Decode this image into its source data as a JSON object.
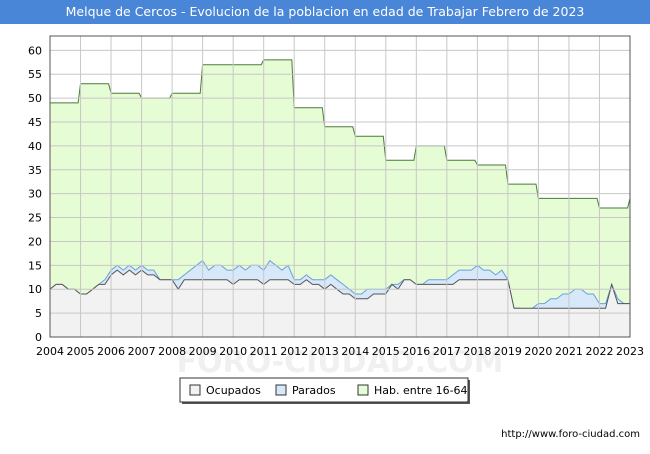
{
  "title": "Melque de Cercos - Evolucion de la poblacion en edad de Trabajar Febrero de 2023",
  "url": "http://www.foro-ciudad.com",
  "watermark": "FORO-CIUDAD.COM",
  "colors": {
    "title_bg": "#4a86d8",
    "hab_fill": "#e6fcd4",
    "hab_line": "#4a7a3a",
    "parados_fill": "#d6e8fa",
    "parados_line": "#6aa0d8",
    "ocupados_fill": "#f2f2f2",
    "ocupados_line": "#555555"
  },
  "chart_data": {
    "type": "area",
    "title": "Melque de Cercos - Evolucion de la poblacion en edad de Trabajar Febrero de 2023",
    "xlim": [
      2004,
      2023
    ],
    "ylim": [
      0,
      63
    ],
    "x_ticks": [
      "2004",
      "2005",
      "2006",
      "2007",
      "2008",
      "2009",
      "2010",
      "2011",
      "2012",
      "2013",
      "2014",
      "2015",
      "2016",
      "2017",
      "2018",
      "2019",
      "2020",
      "2021",
      "2022",
      "2023"
    ],
    "y_ticks": [
      0,
      5,
      10,
      15,
      20,
      25,
      30,
      35,
      40,
      45,
      50,
      55,
      60
    ],
    "grid": true,
    "legend": "bottom",
    "series": [
      {
        "name": "Hab. entre 16-64",
        "x": [
          2004.0,
          2004.92,
          2005.0,
          2005.92,
          2006.0,
          2006.92,
          2007.0,
          2007.92,
          2008.0,
          2008.92,
          2009.0,
          2010.92,
          2011.0,
          2011.92,
          2012.0,
          2012.92,
          2013.0,
          2013.92,
          2014.0,
          2014.92,
          2015.0,
          2015.92,
          2016.0,
          2016.92,
          2017.0,
          2017.92,
          2018.0,
          2018.92,
          2019.0,
          2019.92,
          2020.0,
          2021.92,
          2022.0,
          2022.92,
          2023.0,
          2023.1
        ],
        "values": [
          49,
          49,
          53,
          53,
          51,
          51,
          50,
          50,
          51,
          51,
          57,
          57,
          58,
          58,
          48,
          48,
          44,
          44,
          42,
          42,
          37,
          37,
          40,
          40,
          37,
          37,
          36,
          36,
          32,
          32,
          29,
          29,
          27,
          27,
          29,
          29
        ]
      },
      {
        "name": "Parados",
        "x": [
          2004.0,
          2004.2,
          2004.4,
          2004.6,
          2004.8,
          2005.0,
          2005.2,
          2005.4,
          2005.6,
          2005.8,
          2006.0,
          2006.2,
          2006.4,
          2006.6,
          2006.8,
          2007.0,
          2007.2,
          2007.4,
          2007.6,
          2007.8,
          2008.0,
          2008.2,
          2008.4,
          2008.6,
          2008.8,
          2009.0,
          2009.2,
          2009.4,
          2009.6,
          2009.8,
          2010.0,
          2010.2,
          2010.4,
          2010.6,
          2010.8,
          2011.0,
          2011.2,
          2011.4,
          2011.6,
          2011.8,
          2012.0,
          2012.2,
          2012.4,
          2012.6,
          2012.8,
          2013.0,
          2013.2,
          2013.4,
          2013.6,
          2013.8,
          2014.0,
          2014.2,
          2014.4,
          2014.6,
          2014.8,
          2015.0,
          2015.2,
          2015.4,
          2015.6,
          2015.8,
          2016.0,
          2016.2,
          2016.4,
          2016.6,
          2016.8,
          2017.0,
          2017.2,
          2017.4,
          2017.6,
          2017.8,
          2018.0,
          2018.2,
          2018.4,
          2018.6,
          2018.8,
          2019.0,
          2019.2,
          2019.4,
          2019.6,
          2019.8,
          2020.0,
          2020.2,
          2020.4,
          2020.6,
          2020.8,
          2021.0,
          2021.2,
          2021.4,
          2021.6,
          2021.8,
          2022.0,
          2022.2,
          2022.4,
          2022.6,
          2022.8,
          2023.0,
          2023.1
        ],
        "values": [
          10,
          11,
          11,
          10,
          10,
          9,
          9,
          10,
          11,
          12,
          14,
          15,
          14,
          15,
          14,
          15,
          14,
          14,
          12,
          12,
          12,
          12,
          13,
          14,
          15,
          16,
          14,
          15,
          15,
          14,
          14,
          15,
          14,
          15,
          15,
          14,
          16,
          15,
          14,
          15,
          12,
          12,
          13,
          12,
          12,
          12,
          13,
          12,
          11,
          10,
          9,
          9,
          10,
          10,
          10,
          10,
          11,
          11,
          12,
          12,
          11,
          11,
          12,
          12,
          12,
          12,
          13,
          14,
          14,
          14,
          15,
          14,
          14,
          13,
          14,
          12,
          6,
          6,
          5,
          6,
          7,
          7,
          8,
          8,
          9,
          9,
          10,
          10,
          9,
          9,
          7,
          7,
          11,
          8,
          7,
          7,
          7
        ]
      },
      {
        "name": "Ocupados",
        "x": [
          2004.0,
          2004.2,
          2004.4,
          2004.6,
          2004.8,
          2005.0,
          2005.2,
          2005.4,
          2005.6,
          2005.8,
          2006.0,
          2006.2,
          2006.4,
          2006.6,
          2006.8,
          2007.0,
          2007.2,
          2007.4,
          2007.6,
          2007.8,
          2008.0,
          2008.2,
          2008.4,
          2008.6,
          2008.8,
          2009.0,
          2009.2,
          2009.4,
          2009.6,
          2009.8,
          2010.0,
          2010.2,
          2010.4,
          2010.6,
          2010.8,
          2011.0,
          2011.2,
          2011.4,
          2011.6,
          2011.8,
          2012.0,
          2012.2,
          2012.4,
          2012.6,
          2012.8,
          2013.0,
          2013.2,
          2013.4,
          2013.6,
          2013.8,
          2014.0,
          2014.2,
          2014.4,
          2014.6,
          2014.8,
          2015.0,
          2015.2,
          2015.4,
          2015.6,
          2015.8,
          2016.0,
          2016.2,
          2016.4,
          2016.6,
          2016.8,
          2017.0,
          2017.2,
          2017.4,
          2017.6,
          2017.8,
          2018.0,
          2018.2,
          2018.4,
          2018.6,
          2018.8,
          2019.0,
          2019.2,
          2019.4,
          2019.6,
          2019.8,
          2020.0,
          2020.2,
          2020.4,
          2020.6,
          2020.8,
          2021.0,
          2021.2,
          2021.4,
          2021.6,
          2021.8,
          2022.0,
          2022.2,
          2022.4,
          2022.6,
          2022.8,
          2023.0,
          2023.1
        ],
        "values": [
          10,
          11,
          11,
          10,
          10,
          9,
          9,
          10,
          11,
          11,
          13,
          14,
          13,
          14,
          13,
          14,
          13,
          13,
          12,
          12,
          12,
          10,
          12,
          12,
          12,
          12,
          12,
          12,
          12,
          12,
          11,
          12,
          12,
          12,
          12,
          11,
          12,
          12,
          12,
          12,
          11,
          11,
          12,
          11,
          11,
          10,
          11,
          10,
          9,
          9,
          8,
          8,
          8,
          9,
          9,
          9,
          11,
          10,
          12,
          12,
          11,
          11,
          11,
          11,
          11,
          11,
          11,
          12,
          12,
          12,
          12,
          12,
          12,
          12,
          12,
          12,
          6,
          6,
          6,
          6,
          6,
          6,
          6,
          6,
          6,
          6,
          6,
          6,
          6,
          6,
          6,
          6,
          11,
          7,
          7,
          7,
          7
        ]
      }
    ]
  }
}
